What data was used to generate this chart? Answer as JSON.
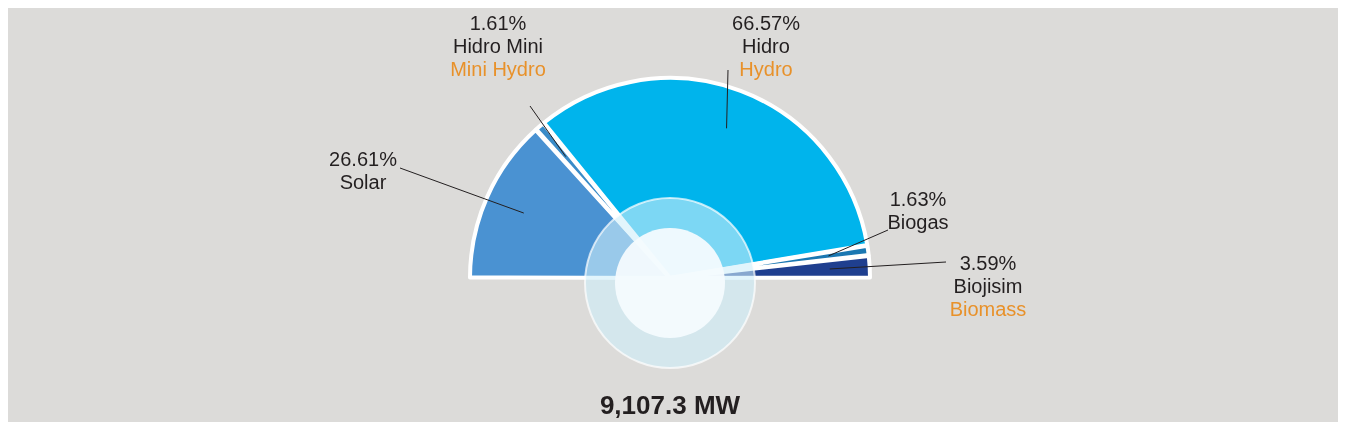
{
  "chart_data": {
    "type": "pie",
    "title": "9,107.3 MW",
    "categories": [
      "Solar",
      "Hidro Mini\nMini Hydro",
      "Hidro\nHydro",
      "Biogas",
      "Biojisim\nBiomass"
    ],
    "values": [
      26.61,
      1.61,
      66.57,
      1.63,
      3.59
    ],
    "value_labels": [
      "26.61%",
      "1.61%",
      "66.57%",
      "1.63%",
      "3.59%"
    ],
    "colors": [
      "#4a92d2",
      "#3a8cc8",
      "#00b4ec",
      "#1b78b2",
      "#1f3f8f"
    ]
  }
}
